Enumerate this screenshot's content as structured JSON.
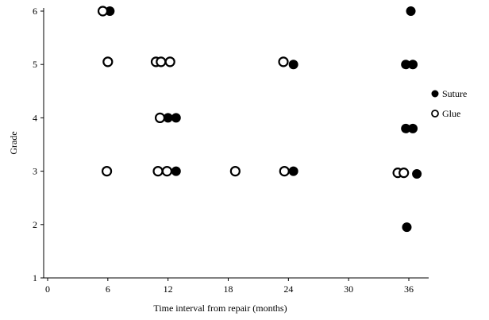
{
  "chart_data": {
    "type": "scatter",
    "title": "",
    "xlabel": "Time interval from repair (months)",
    "ylabel": "Grade",
    "xlim": [
      0,
      37.5
    ],
    "ylim": [
      1,
      6.1
    ],
    "xticks": [
      0,
      6,
      12,
      18,
      24,
      30,
      36
    ],
    "yticks": [
      1,
      2,
      3,
      4,
      5,
      6
    ],
    "grid": false,
    "legend_position": "right",
    "series": [
      {
        "name": "Suture",
        "marker": "filled-circle",
        "color": "#000000",
        "points": [
          {
            "x": 6.2,
            "y": 6
          },
          {
            "x": 12,
            "y": 4
          },
          {
            "x": 12.8,
            "y": 4
          },
          {
            "x": 12.8,
            "y": 3
          },
          {
            "x": 24.5,
            "y": 5
          },
          {
            "x": 24.5,
            "y": 3
          },
          {
            "x": 36.2,
            "y": 6
          },
          {
            "x": 35.7,
            "y": 5
          },
          {
            "x": 36.4,
            "y": 5
          },
          {
            "x": 35.7,
            "y": 3.8
          },
          {
            "x": 36.4,
            "y": 3.8
          },
          {
            "x": 36.8,
            "y": 2.95
          },
          {
            "x": 35.8,
            "y": 1.95
          }
        ]
      },
      {
        "name": "Glue",
        "marker": "open-circle",
        "color": "#000000",
        "points": [
          {
            "x": 5.5,
            "y": 6
          },
          {
            "x": 6,
            "y": 5.05
          },
          {
            "x": 10.8,
            "y": 5.05
          },
          {
            "x": 11.3,
            "y": 5.05
          },
          {
            "x": 12.2,
            "y": 5.05
          },
          {
            "x": 11.2,
            "y": 4
          },
          {
            "x": 5.9,
            "y": 3
          },
          {
            "x": 11,
            "y": 3
          },
          {
            "x": 11.9,
            "y": 3
          },
          {
            "x": 18.7,
            "y": 3
          },
          {
            "x": 23.5,
            "y": 5.05
          },
          {
            "x": 23.6,
            "y": 3
          },
          {
            "x": 34.9,
            "y": 2.97
          },
          {
            "x": 35.5,
            "y": 2.97
          }
        ]
      }
    ]
  }
}
